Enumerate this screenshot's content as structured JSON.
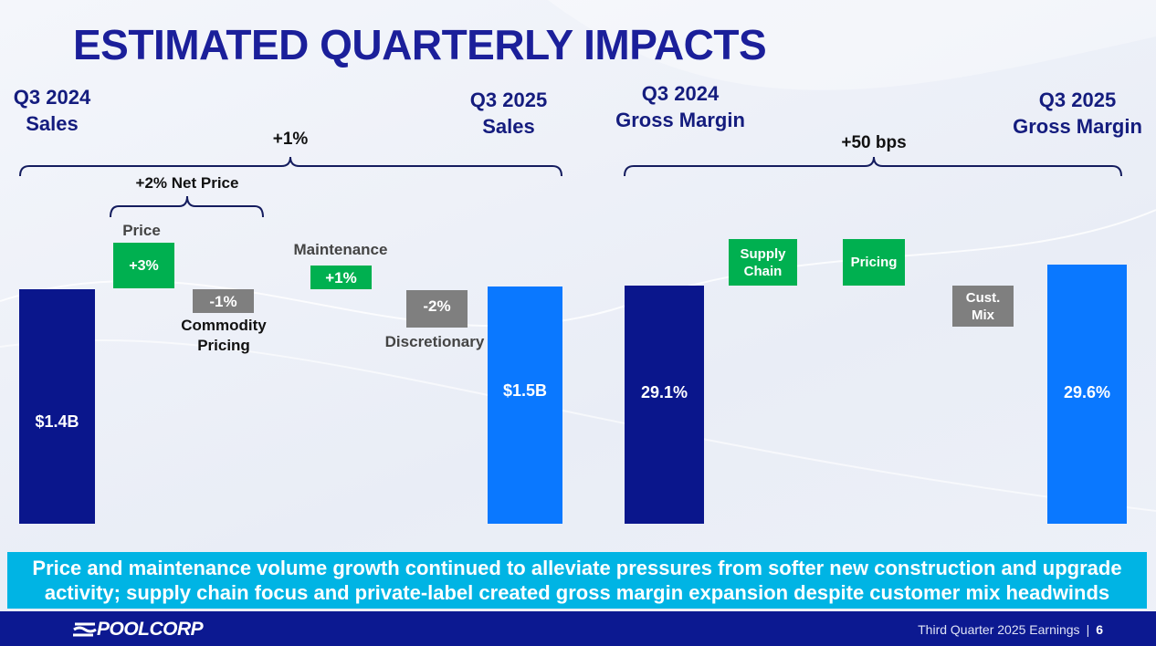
{
  "title": "ESTIMATED QUARTERLY IMPACTS",
  "chart_data": [
    {
      "type": "waterfall",
      "title": "Sales",
      "start": {
        "label_line1": "Q3 2024",
        "label_line2": "Sales",
        "value": "$1.4B"
      },
      "end": {
        "label_line1": "Q3 2025",
        "label_line2": "Sales",
        "value": "$1.5B"
      },
      "total_change": "+1%",
      "net_price_bracket": "+2% Net Price",
      "steps": [
        {
          "label": "Price",
          "value": "+3%",
          "change_pct": 3
        },
        {
          "label_line1": "Commodity",
          "label_line2": "Pricing",
          "value": "-1%",
          "change_pct": -1
        },
        {
          "label": "Maintenance",
          "value": "+1%",
          "change_pct": 1
        },
        {
          "label": "Discretionary",
          "value": "-2%",
          "change_pct": -2
        }
      ]
    },
    {
      "type": "waterfall",
      "title": "Gross Margin",
      "start": {
        "label_line1": "Q3 2024",
        "label_line2": "Gross Margin",
        "value": "29.1%"
      },
      "end": {
        "label_line1": "Q3 2025",
        "label_line2": "Gross Margin",
        "value": "29.6%"
      },
      "total_change": "+50 bps",
      "steps": [
        {
          "label_line1": "Supply",
          "label_line2": "Chain",
          "direction": "positive"
        },
        {
          "label": "Pricing",
          "direction": "positive"
        },
        {
          "label_line1": "Cust.",
          "label_line2": "Mix",
          "direction": "negative"
        }
      ]
    }
  ],
  "colors": {
    "navy": "#0a168c",
    "blue": "#0a78ff",
    "green": "#00b050",
    "gray": "#7f7f7f",
    "callout": "#00b4e4"
  },
  "callout": "Price and maintenance volume growth continued to alleviate pressures from softer new construction and upgrade activity; supply chain focus and private-label created gross margin expansion despite customer mix headwinds",
  "footer": {
    "logo": "POOLCORP",
    "text": "Third Quarter 2025 Earnings",
    "page": "6"
  }
}
